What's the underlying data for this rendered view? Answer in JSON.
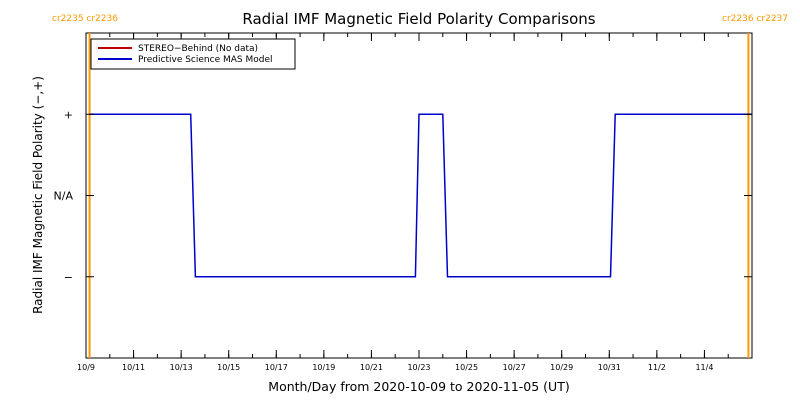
{
  "chart_data": {
    "type": "line",
    "title": "Radial IMF Magnetic Field Polarity Comparisons",
    "xlabel": "Month/Day from 2020-10-09 to 2020-11-05 (UT)",
    "ylabel": "Radial IMF Magnetic Field Polarity (−,+)",
    "x_ticks": [
      {
        "day": 0,
        "label": "10/9"
      },
      {
        "day": 2,
        "label": "10/11"
      },
      {
        "day": 4,
        "label": "10/13"
      },
      {
        "day": 6,
        "label": "10/15"
      },
      {
        "day": 8,
        "label": "10/17"
      },
      {
        "day": 10,
        "label": "10/19"
      },
      {
        "day": 12,
        "label": "10/21"
      },
      {
        "day": 14,
        "label": "10/23"
      },
      {
        "day": 16,
        "label": "10/25"
      },
      {
        "day": 18,
        "label": "10/27"
      },
      {
        "day": 20,
        "label": "10/29"
      },
      {
        "day": 22,
        "label": "10/31"
      },
      {
        "day": 24,
        "label": "11/2"
      },
      {
        "day": 26,
        "label": "11/4"
      }
    ],
    "y_ticks": [
      {
        "value": 1,
        "label": "+"
      },
      {
        "value": 0,
        "label": "N/A"
      },
      {
        "value": -1,
        "label": "−"
      }
    ],
    "xlim": [
      0,
      28
    ],
    "ylim": [
      -2,
      2
    ],
    "legend_position": "top-left",
    "series": [
      {
        "name": "STEREO−Behind (No data)",
        "color": "#c00000",
        "x": [],
        "y": []
      },
      {
        "name": "Predictive Science MAS Model",
        "color": "#0000cc",
        "x": [
          0.15,
          4.4,
          4.6,
          13.85,
          14.0,
          15.0,
          15.2,
          22.05,
          22.25,
          28.0
        ],
        "y": [
          1,
          1,
          -1,
          -1,
          1,
          1,
          -1,
          -1,
          1,
          1
        ]
      }
    ],
    "carrington_markers": [
      {
        "day": 0.15,
        "left_label": "cr2235",
        "right_label": "cr2236",
        "side": "left"
      },
      {
        "day": 27.85,
        "left_label": "cr2236",
        "right_label": "cr2237",
        "side": "right"
      }
    ],
    "marker_color": "#ff9900"
  }
}
